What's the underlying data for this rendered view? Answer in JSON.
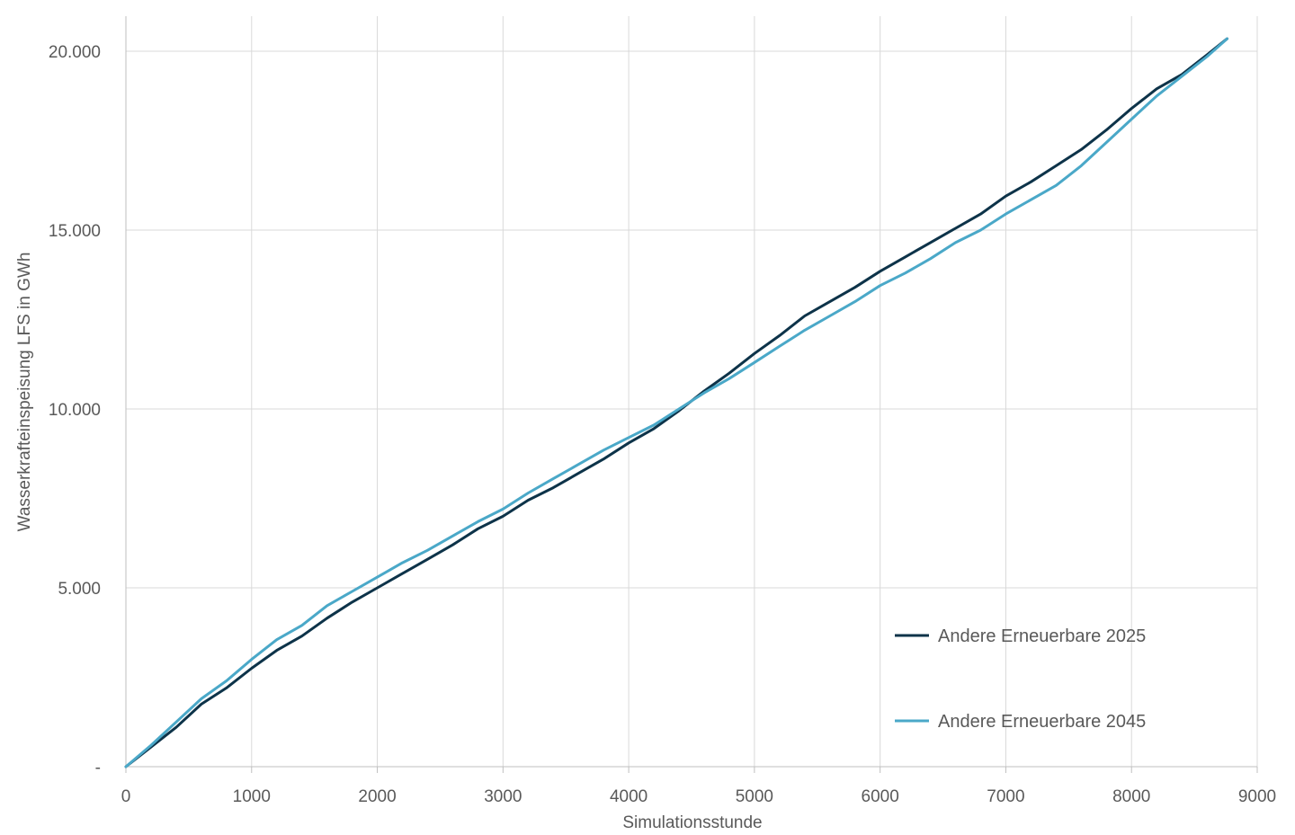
{
  "chart_data": {
    "type": "line",
    "title": "",
    "xlabel": "Simulationsstunde",
    "ylabel": "Wasserkrafteinspeisung LFS in GWh",
    "xlim": [
      0,
      9000
    ],
    "ylim": [
      0,
      20000
    ],
    "xticks": [
      0,
      1000,
      2000,
      3000,
      4000,
      5000,
      6000,
      7000,
      8000,
      9000
    ],
    "xtick_labels": [
      "0",
      "1000",
      "2000",
      "3000",
      "4000",
      "5000",
      "6000",
      "7000",
      "8000",
      "9000"
    ],
    "yticks": [
      0,
      5000,
      10000,
      15000,
      20000
    ],
    "ytick_labels": [
      "-",
      "5.000",
      "10.000",
      "15.000",
      "20.000"
    ],
    "grid": true,
    "legend_position": "bottom-right",
    "series": [
      {
        "name": "Andere Erneuerbare 2025",
        "color": "#0d3349",
        "x": [
          0,
          200,
          400,
          600,
          800,
          1000,
          1200,
          1400,
          1600,
          1800,
          2000,
          2200,
          2400,
          2600,
          2800,
          3000,
          3200,
          3400,
          3600,
          3800,
          4000,
          4200,
          4400,
          4600,
          4800,
          5000,
          5200,
          5400,
          5600,
          5800,
          6000,
          6200,
          6400,
          6600,
          6800,
          7000,
          7200,
          7400,
          7600,
          7800,
          8000,
          8200,
          8400,
          8600,
          8760
        ],
        "y": [
          0,
          550,
          1100,
          1750,
          2200,
          2750,
          3250,
          3650,
          4150,
          4600,
          5000,
          5400,
          5800,
          6200,
          6650,
          7000,
          7450,
          7800,
          8200,
          8600,
          9050,
          9450,
          9950,
          10500,
          11000,
          11550,
          12050,
          12600,
          13000,
          13400,
          13850,
          14250,
          14650,
          15050,
          15450,
          15950,
          16350,
          16800,
          17250,
          17800,
          18400,
          18950,
          19350,
          19900,
          20350
        ]
      },
      {
        "name": "Andere Erneuerbare 2045",
        "color": "#4aa8c8",
        "x": [
          0,
          200,
          400,
          600,
          800,
          1000,
          1200,
          1400,
          1600,
          1800,
          2000,
          2200,
          2400,
          2600,
          2800,
          3000,
          3200,
          3400,
          3600,
          3800,
          4000,
          4200,
          4400,
          4600,
          4800,
          5000,
          5200,
          5400,
          5600,
          5800,
          6000,
          6200,
          6400,
          6600,
          6800,
          7000,
          7200,
          7400,
          7600,
          7800,
          8000,
          8200,
          8400,
          8600,
          8760
        ],
        "y": [
          0,
          600,
          1250,
          1900,
          2400,
          3000,
          3550,
          3950,
          4500,
          4900,
          5300,
          5700,
          6050,
          6450,
          6850,
          7200,
          7650,
          8050,
          8450,
          8850,
          9200,
          9550,
          10000,
          10450,
          10850,
          11300,
          11750,
          12200,
          12600,
          13000,
          13450,
          13800,
          14200,
          14650,
          15000,
          15450,
          15850,
          16250,
          16800,
          17450,
          18100,
          18750,
          19300,
          19850,
          20350
        ]
      }
    ]
  }
}
